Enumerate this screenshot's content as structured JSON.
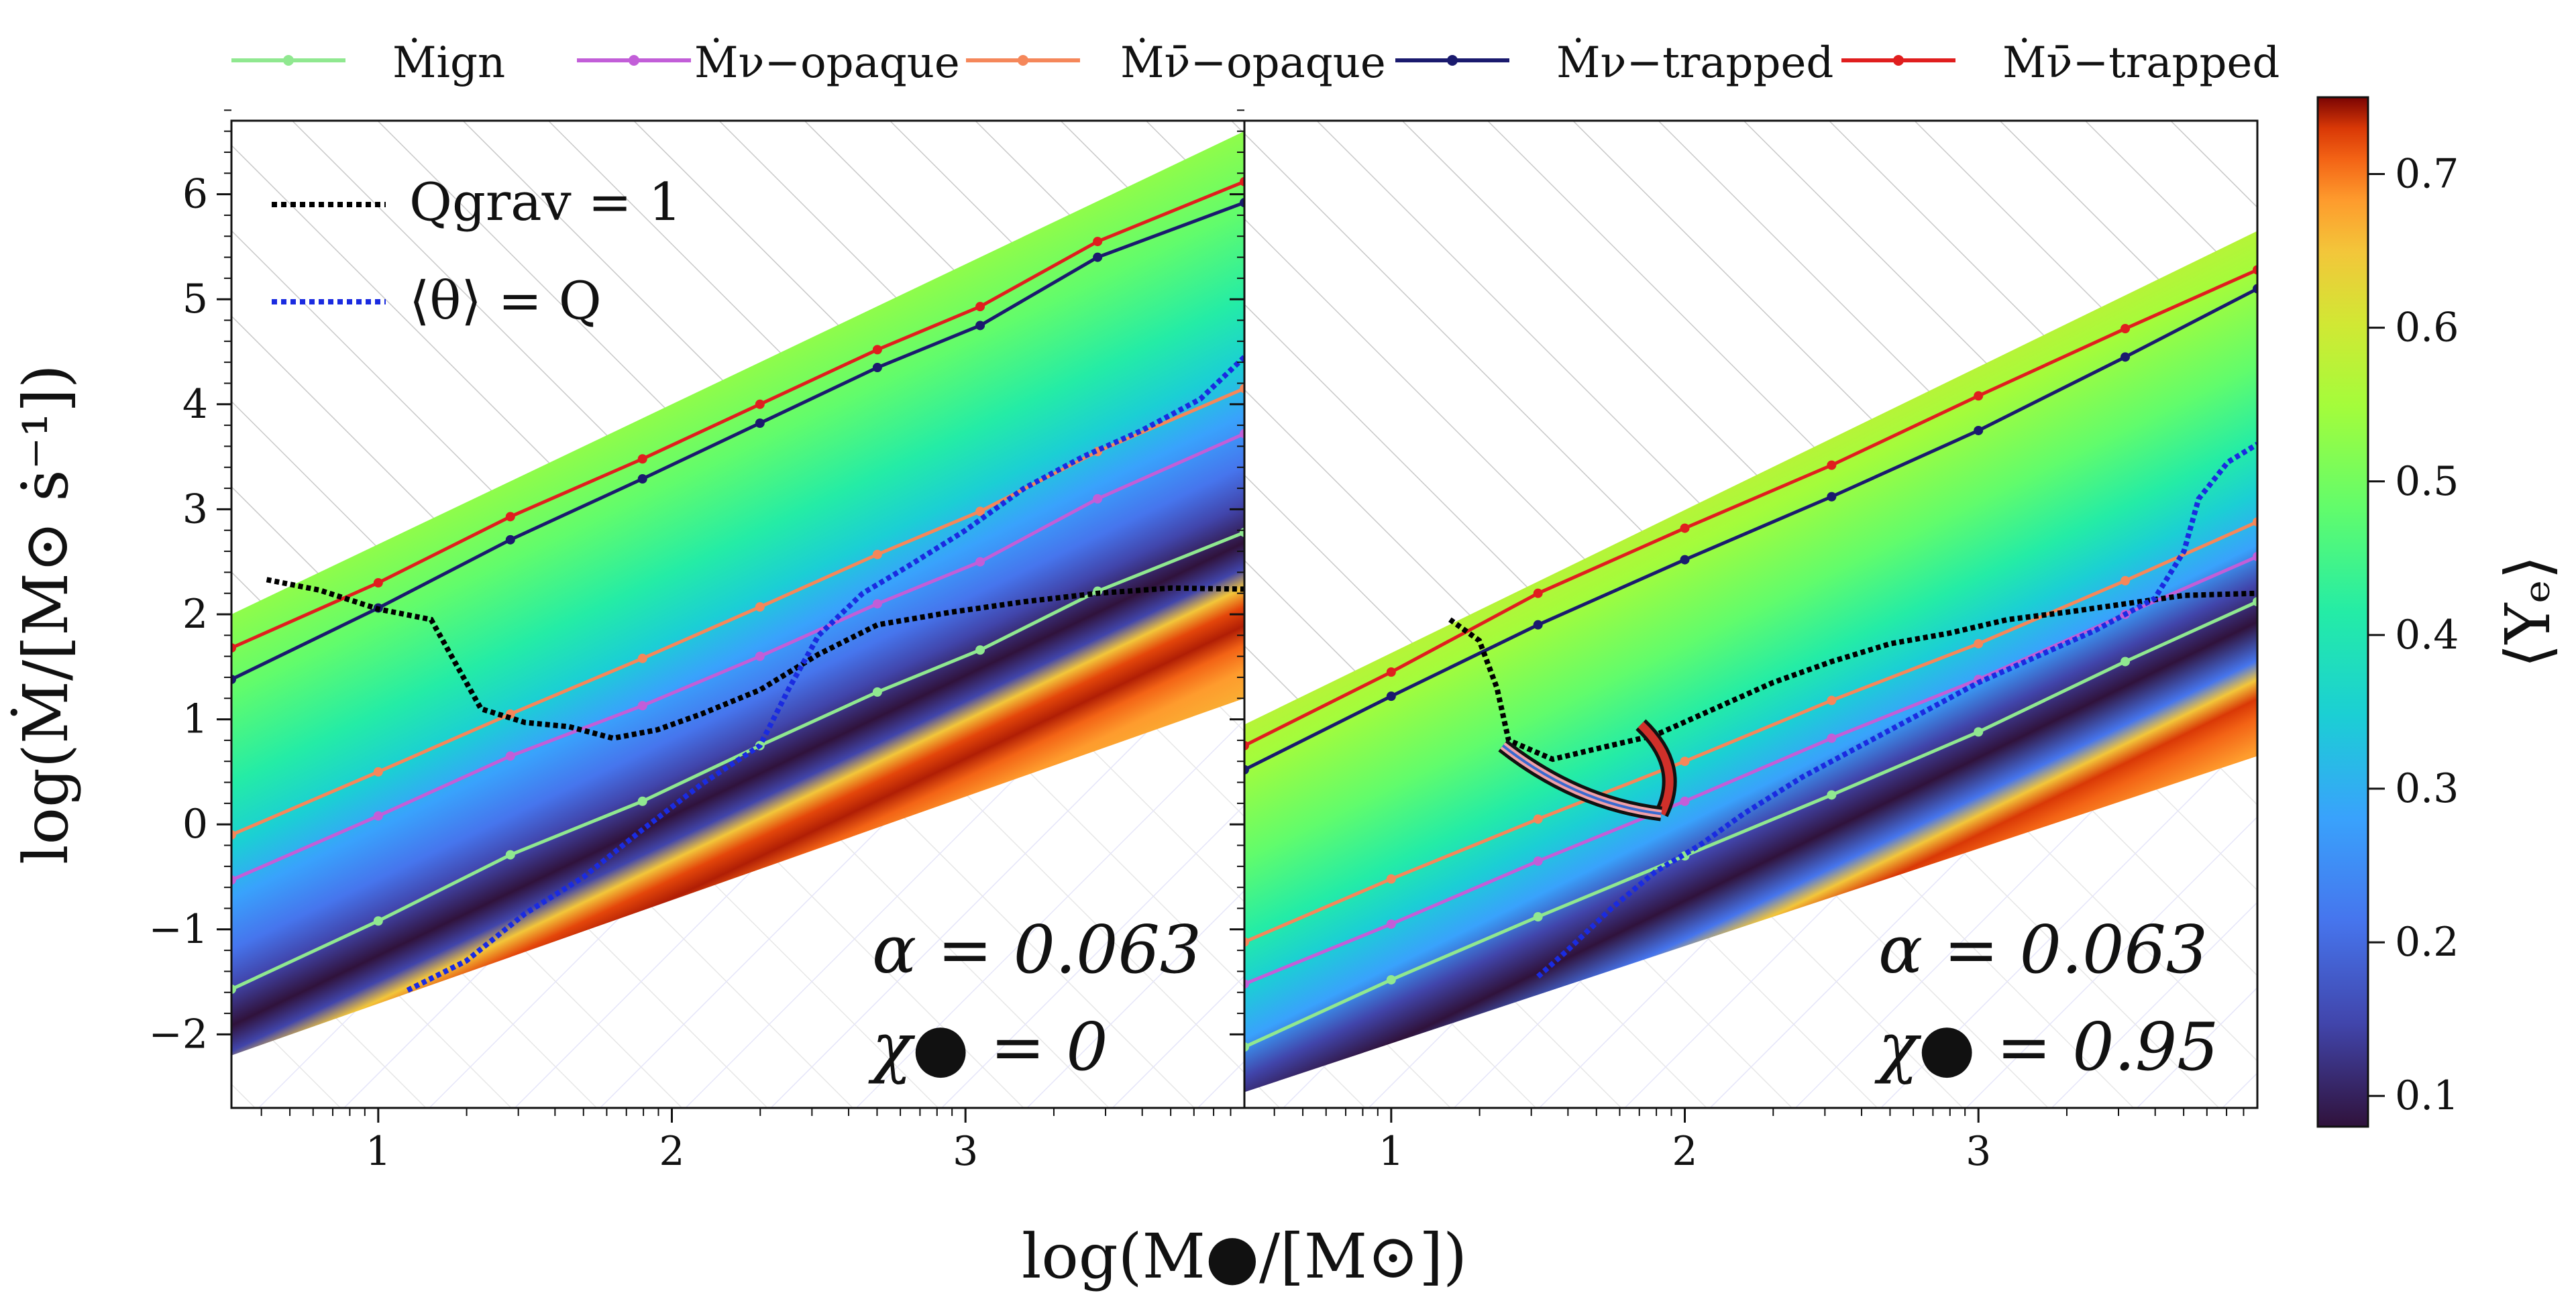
{
  "chart_data": {
    "type": "heatmap",
    "xlabel": "log(M●/[M⊙])",
    "ylabel": "log(Ṁ/[M⊙ ṡ⁻¹])",
    "xlim": [
      0.5,
      3.95
    ],
    "ylim": [
      -2.7,
      6.7
    ],
    "x_ticks": [
      1,
      2,
      3
    ],
    "x_tick_labels": [
      "1",
      "2",
      "3"
    ],
    "y_ticks": [
      -2,
      -1,
      0,
      1,
      2,
      3,
      4,
      5,
      6
    ],
    "y_tick_labels": [
      "−2",
      "−1",
      "0",
      "1",
      "2",
      "3",
      "4",
      "5",
      "6"
    ],
    "colorbar": {
      "label": "⟨Yₑ⟩",
      "range": [
        0.08,
        0.75
      ],
      "ticks": [
        0.1,
        0.2,
        0.3,
        0.4,
        0.5,
        0.6,
        0.7
      ],
      "tick_labels": [
        "0.1",
        "0.2",
        "0.3",
        "0.4",
        "0.5",
        "0.6",
        "0.7"
      ],
      "colormap": "turbo"
    },
    "legend_top": [
      {
        "name": "Ṁign",
        "color": "#90e890"
      },
      {
        "name": "Ṁν−opaque",
        "color": "#c25ed8"
      },
      {
        "name": "Ṁν̄−opaque",
        "color": "#f5875a"
      },
      {
        "name": "Ṁν−trapped",
        "color": "#1a1a6e"
      },
      {
        "name": "Ṁν̄−trapped",
        "color": "#e01e1e"
      }
    ],
    "legend_inner": [
      {
        "name": "Qgrav = 1",
        "color": "#000000",
        "style": "dotted"
      },
      {
        "name": "⟨θ⟩ = Q",
        "color": "#1a2be0",
        "style": "dotted"
      }
    ],
    "panels": [
      {
        "annotation_alpha": "α = 0.063",
        "annotation_chi": "χ● = 0",
        "band_top": [
          [
            0.5,
            2.0
          ],
          [
            3.95,
            6.6
          ]
        ],
        "band_bottom": [
          [
            0.5,
            -2.2
          ],
          [
            3.95,
            1.2
          ]
        ],
        "series": [
          {
            "name": "Ṁν̄−trapped",
            "x": [
              0.5,
              1.0,
              1.45,
              1.9,
              2.3,
              2.7,
              3.05,
              3.45,
              3.95
            ],
            "y": [
              1.68,
              2.3,
              2.93,
              3.48,
              4.0,
              4.52,
              4.93,
              5.55,
              6.12
            ]
          },
          {
            "name": "Ṁν−trapped",
            "x": [
              0.5,
              1.0,
              1.45,
              1.9,
              2.3,
              2.7,
              3.05,
              3.45,
              3.95
            ],
            "y": [
              1.38,
              2.06,
              2.71,
              3.29,
              3.82,
              4.35,
              4.75,
              5.4,
              5.92
            ]
          },
          {
            "name": "Ṁν̄−opaque",
            "x": [
              0.5,
              1.0,
              1.45,
              1.9,
              2.3,
              2.7,
              3.05,
              3.45,
              3.95
            ],
            "y": [
              -0.1,
              0.5,
              1.05,
              1.58,
              2.07,
              2.57,
              2.98,
              3.55,
              4.15
            ]
          },
          {
            "name": "Ṁν−opaque",
            "x": [
              0.5,
              1.0,
              1.45,
              1.9,
              2.3,
              2.7,
              3.05,
              3.45,
              3.95
            ],
            "y": [
              -0.53,
              0.08,
              0.65,
              1.13,
              1.6,
              2.1,
              2.5,
              3.1,
              3.72
            ]
          },
          {
            "name": "Ṁign",
            "x": [
              0.5,
              1.0,
              1.45,
              1.9,
              2.3,
              2.7,
              3.05,
              3.45,
              3.95
            ],
            "y": [
              -1.57,
              -0.92,
              -0.29,
              0.22,
              0.75,
              1.26,
              1.66,
              2.22,
              2.78
            ]
          }
        ],
        "qgrav": {
          "x": [
            0.62,
            0.8,
            1.0,
            1.18,
            1.27,
            1.35,
            1.5,
            1.65,
            1.8,
            1.95,
            2.1,
            2.3,
            2.5,
            2.7,
            2.95,
            3.2,
            3.45,
            3.7,
            3.95
          ],
          "y": [
            2.33,
            2.23,
            2.05,
            1.95,
            1.5,
            1.1,
            0.97,
            0.93,
            0.82,
            0.9,
            1.05,
            1.28,
            1.62,
            1.9,
            2.02,
            2.12,
            2.2,
            2.25,
            2.24
          ]
        },
        "theta_q": {
          "x": [
            1.1,
            1.3,
            1.5,
            1.7,
            1.9,
            2.1,
            2.3,
            2.4,
            2.5,
            2.65,
            2.8,
            3.0,
            3.2,
            3.4,
            3.6,
            3.8,
            3.95
          ],
          "y": [
            -1.58,
            -1.3,
            -0.85,
            -0.5,
            -0.05,
            0.38,
            0.75,
            1.3,
            1.8,
            2.2,
            2.45,
            2.8,
            3.2,
            3.5,
            3.75,
            4.05,
            4.45
          ]
        }
      },
      {
        "annotation_alpha": "α = 0.063",
        "annotation_chi": "χ● = 0.95",
        "band_top": [
          [
            0.5,
            0.95
          ],
          [
            3.95,
            5.65
          ]
        ],
        "band_bottom": [
          [
            0.5,
            -2.55
          ],
          [
            3.95,
            0.65
          ]
        ],
        "series": [
          {
            "name": "Ṁν̄−trapped",
            "x": [
              0.5,
              1.0,
              1.5,
              2.0,
              2.5,
              3.0,
              3.5,
              3.95
            ],
            "y": [
              0.75,
              1.45,
              2.2,
              2.82,
              3.42,
              4.08,
              4.72,
              5.28
            ]
          },
          {
            "name": "Ṁν−trapped",
            "x": [
              0.5,
              1.0,
              1.5,
              2.0,
              2.5,
              3.0,
              3.5,
              3.95
            ],
            "y": [
              0.52,
              1.22,
              1.9,
              2.52,
              3.12,
              3.75,
              4.45,
              5.1
            ]
          },
          {
            "name": "Ṁν̄−opaque",
            "x": [
              0.5,
              1.0,
              1.5,
              2.0,
              2.5,
              3.0,
              3.5,
              3.95
            ],
            "y": [
              -1.12,
              -0.52,
              0.05,
              0.6,
              1.18,
              1.72,
              2.32,
              2.88
            ]
          },
          {
            "name": "Ṁν−opaque",
            "x": [
              0.5,
              1.0,
              1.5,
              2.0,
              2.5,
              3.0,
              3.5,
              3.95
            ],
            "y": [
              -1.52,
              -0.95,
              -0.35,
              0.22,
              0.82,
              1.38,
              2.0,
              2.55
            ]
          },
          {
            "name": "Ṁign",
            "x": [
              0.5,
              1.0,
              1.5,
              2.0,
              2.5,
              3.0,
              3.5,
              3.95
            ],
            "y": [
              -2.12,
              -1.48,
              -0.88,
              -0.3,
              0.28,
              0.88,
              1.55,
              2.12
            ]
          }
        ],
        "qgrav": {
          "x": [
            1.2,
            1.3,
            1.36,
            1.4,
            1.55,
            1.7,
            1.9,
            2.1,
            2.3,
            2.5,
            2.7,
            2.9,
            3.1,
            3.3,
            3.5,
            3.7,
            3.95
          ],
          "y": [
            1.95,
            1.75,
            1.3,
            0.8,
            0.62,
            0.72,
            0.85,
            1.1,
            1.35,
            1.55,
            1.72,
            1.82,
            1.95,
            2.02,
            2.1,
            2.18,
            2.2
          ]
        },
        "theta_q": {
          "x": [
            1.5,
            1.6,
            1.75,
            1.9,
            2.05,
            2.2,
            2.4,
            2.6,
            2.8,
            3.0,
            3.2,
            3.4,
            3.6,
            3.7,
            3.75,
            3.85,
            3.95
          ],
          "y": [
            -1.45,
            -1.2,
            -0.8,
            -0.45,
            -0.2,
            0.1,
            0.45,
            0.75,
            1.05,
            1.35,
            1.6,
            1.85,
            2.15,
            2.6,
            3.1,
            3.45,
            3.62
          ]
        },
        "arrow": {
          "from": [
            1.85,
            0.95
          ],
          "to": [
            1.92,
            0.1
          ],
          "tail": [
            1.38,
            0.75
          ]
        }
      }
    ]
  }
}
